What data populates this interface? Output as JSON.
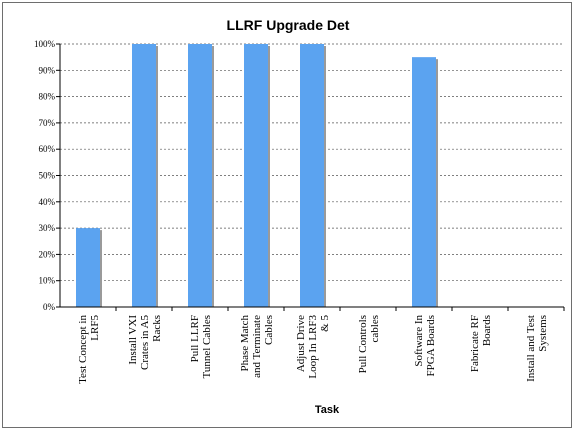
{
  "chart_data": {
    "type": "bar",
    "title": "LLRF Upgrade Det",
    "xlabel": "Task",
    "ylabel": "",
    "ylim": [
      0,
      100
    ],
    "yticks": [
      "0%",
      "10%",
      "20%",
      "30%",
      "40%",
      "50%",
      "60%",
      "70%",
      "80%",
      "90%",
      "100%"
    ],
    "grid": true,
    "bar_color": "#5ba3f0",
    "categories": [
      [
        "Test Concept in",
        "LRF5"
      ],
      [
        "Install VXI",
        "Crates in A5",
        "Racks"
      ],
      [
        "Pull LLRF",
        "Tunnel Cables"
      ],
      [
        "Phase Match",
        "and Terminate",
        "Cables"
      ],
      [
        "Adjust Drive",
        "Loop In LRF3",
        "& 5"
      ],
      [
        "Pull Controls",
        "cables"
      ],
      [
        "Software In",
        "FPGA Boards"
      ],
      [
        "Fabricate RF",
        "Boards"
      ],
      [
        "Install and Test",
        "Systems"
      ]
    ],
    "values": [
      30,
      100,
      100,
      100,
      100,
      0,
      95,
      0,
      0
    ]
  }
}
